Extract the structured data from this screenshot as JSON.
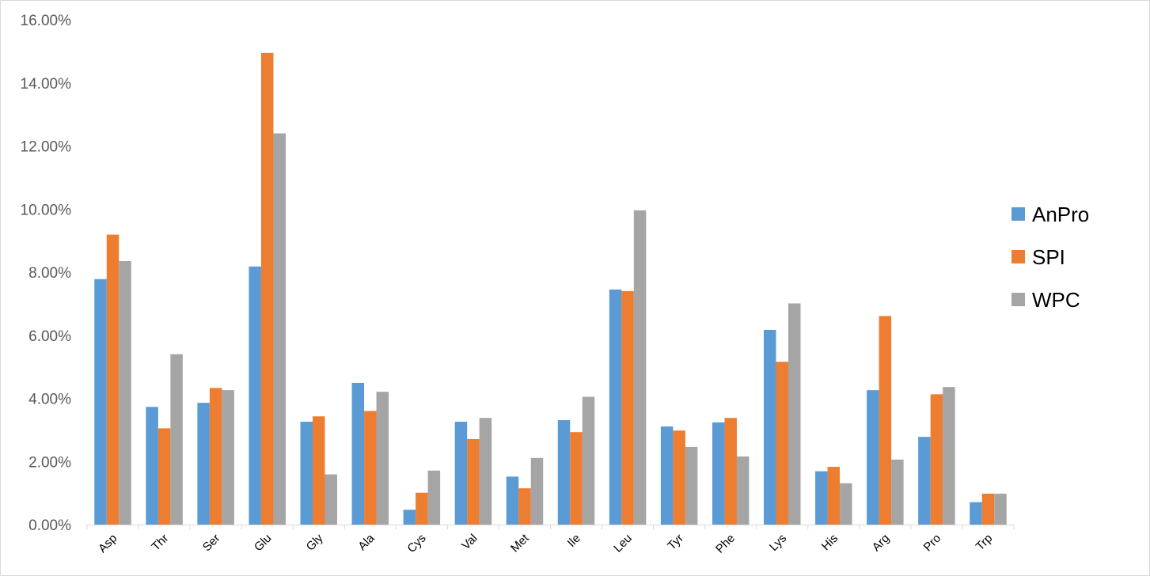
{
  "chart_data": {
    "type": "bar",
    "title": "",
    "xlabel": "",
    "ylabel": "",
    "ylim": [
      0,
      0.16
    ],
    "yticks": [
      "0.00%",
      "2.00%",
      "4.00%",
      "6.00%",
      "8.00%",
      "10.00%",
      "12.00%",
      "14.00%",
      "16.00%"
    ],
    "grid": false,
    "legend_position": "right",
    "categories": [
      "Asp",
      "Thr",
      "Ser",
      "Glu",
      "Gly",
      "Ala",
      "Cys",
      "Val",
      "Met",
      "Ile",
      "Leu",
      "Tyr",
      "Phe",
      "Lys",
      "His",
      "Arg",
      "Pro",
      "Trp"
    ],
    "series": [
      {
        "name": "AnPro",
        "color": "#5b9bd5",
        "values": [
          0.0778,
          0.0373,
          0.0386,
          0.0818,
          0.0326,
          0.0449,
          0.0047,
          0.0326,
          0.0152,
          0.0331,
          0.0745,
          0.0311,
          0.0324,
          0.0617,
          0.0169,
          0.0426,
          0.0278,
          0.0071
        ]
      },
      {
        "name": "SPI",
        "color": "#ed7d31",
        "values": [
          0.0919,
          0.0305,
          0.0433,
          0.1495,
          0.0343,
          0.036,
          0.0101,
          0.0271,
          0.0115,
          0.0293,
          0.074,
          0.0298,
          0.0338,
          0.0516,
          0.0183,
          0.0661,
          0.0413,
          0.0098
        ]
      },
      {
        "name": "WPC",
        "color": "#a5a5a5",
        "values": [
          0.0835,
          0.054,
          0.0426,
          0.124,
          0.0159,
          0.0421,
          0.0171,
          0.0338,
          0.0211,
          0.0405,
          0.0996,
          0.0246,
          0.0216,
          0.0701,
          0.0131,
          0.0206,
          0.0436,
          0.0098
        ]
      }
    ]
  }
}
